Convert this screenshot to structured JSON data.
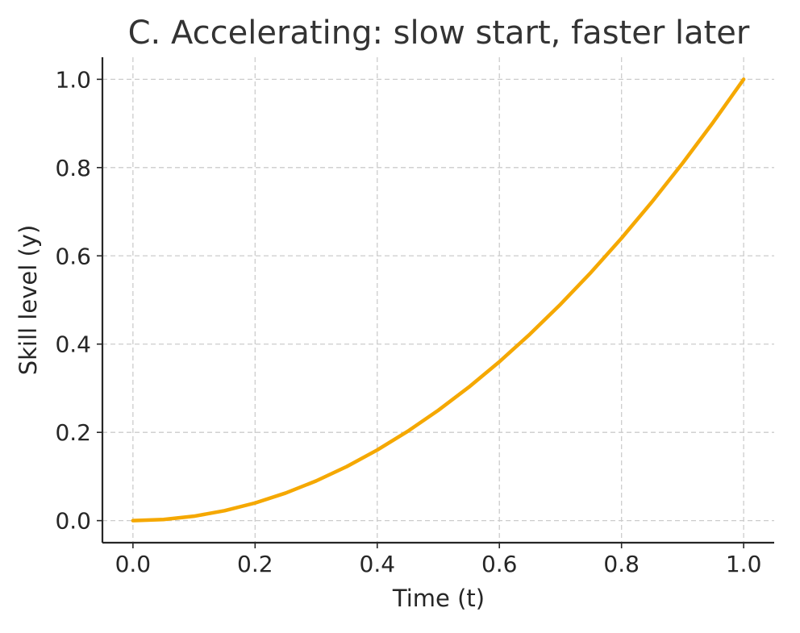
{
  "chart_data": {
    "type": "line",
    "title": "C. Accelerating: slow start, faster later",
    "xlabel": "Time (t)",
    "ylabel": "Skill level (y)",
    "xlim": [
      -0.05,
      1.05
    ],
    "ylim": [
      -0.05,
      1.05
    ],
    "xticks": [
      0.0,
      0.2,
      0.4,
      0.6,
      0.8,
      1.0
    ],
    "yticks": [
      0.0,
      0.2,
      0.4,
      0.6,
      0.8,
      1.0
    ],
    "xtick_labels": [
      "0.0",
      "0.2",
      "0.4",
      "0.6",
      "0.8",
      "1.0"
    ],
    "ytick_labels": [
      "0.0",
      "0.2",
      "0.4",
      "0.6",
      "0.8",
      "1.0"
    ],
    "grid": true,
    "legend": "none",
    "series": [
      {
        "color": "#f5a800",
        "x": [
          0.0,
          0.05,
          0.1,
          0.15,
          0.2,
          0.25,
          0.3,
          0.35,
          0.4,
          0.45,
          0.5,
          0.55,
          0.6,
          0.65,
          0.7,
          0.75,
          0.8,
          0.85,
          0.9,
          0.95,
          1.0
        ],
        "y": [
          0.0,
          0.0025,
          0.01,
          0.0225,
          0.04,
          0.0625,
          0.09,
          0.1225,
          0.16,
          0.2025,
          0.25,
          0.3025,
          0.36,
          0.4225,
          0.49,
          0.5625,
          0.64,
          0.7225,
          0.81,
          0.9025,
          1.0
        ]
      }
    ]
  }
}
